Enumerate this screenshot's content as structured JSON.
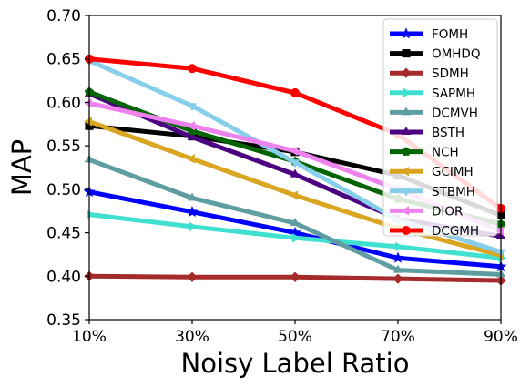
{
  "chart_data": {
    "type": "line",
    "title": "",
    "xlabel": "Noisy Label Ratio",
    "ylabel": "MAP",
    "categories": [
      "10%",
      "30%",
      "50%",
      "70%",
      "90%"
    ],
    "ylim": [
      0.35,
      0.7
    ],
    "yticks": [
      "0.35",
      "0.40",
      "0.45",
      "0.50",
      "0.55",
      "0.60",
      "0.65",
      "0.70"
    ],
    "grid": false,
    "legend_position": "top-right",
    "series": [
      {
        "name": "FOMH",
        "color": "#0000ff",
        "marker": "star",
        "values": [
          0.497,
          0.474,
          0.45,
          0.421,
          0.411
        ]
      },
      {
        "name": "OMHDQ",
        "color": "#000000",
        "marker": "square",
        "values": [
          0.573,
          0.561,
          0.543,
          0.516,
          0.47
        ]
      },
      {
        "name": "SDMH",
        "color": "#a52a2a",
        "marker": "diamond",
        "values": [
          0.4,
          0.399,
          0.399,
          0.397,
          0.395
        ]
      },
      {
        "name": "SAPMH",
        "color": "#40e0d0",
        "marker": "triangle-right",
        "values": [
          0.471,
          0.457,
          0.444,
          0.434,
          0.421
        ]
      },
      {
        "name": "DCMVH",
        "color": "#5f9ea0",
        "marker": "triangle-up",
        "values": [
          0.534,
          0.49,
          0.461,
          0.407,
          0.402
        ]
      },
      {
        "name": "BSTH",
        "color": "#4b0082",
        "marker": "triangle-up",
        "values": [
          0.61,
          0.56,
          0.517,
          0.466,
          0.446
        ]
      },
      {
        "name": "NCH",
        "color": "#006400",
        "marker": "pentagon",
        "values": [
          0.612,
          0.567,
          0.532,
          0.489,
          0.46
        ]
      },
      {
        "name": "GCIMH",
        "color": "#daa520",
        "marker": "triangle-left",
        "values": [
          0.578,
          0.535,
          0.493,
          0.455,
          0.424
        ]
      },
      {
        "name": "STBMH",
        "color": "#87ceeb",
        "marker": "triangle-down",
        "values": [
          0.648,
          0.596,
          0.531,
          0.465,
          0.428
        ]
      },
      {
        "name": "DIOR",
        "color": "#ee82ee",
        "marker": "triangle-left",
        "values": [
          0.599,
          0.573,
          0.544,
          0.5,
          0.452
        ]
      },
      {
        "name": "DCGMH",
        "color": "#ff0000",
        "marker": "circle",
        "values": [
          0.65,
          0.639,
          0.611,
          0.563,
          0.478
        ]
      }
    ]
  }
}
